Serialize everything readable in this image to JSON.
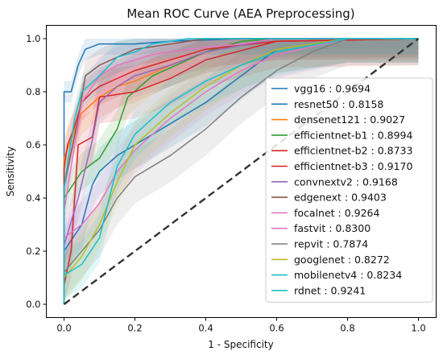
{
  "chart_data": {
    "type": "line",
    "title": "Mean ROC Curve (AEA Preprocessing)",
    "xlabel": "1 - Specificity",
    "ylabel": "Sensitivity",
    "xlim": [
      -0.05,
      1.05
    ],
    "ylim": [
      -0.05,
      1.05
    ],
    "xticks": [
      0.0,
      0.2,
      0.4,
      0.6,
      0.8,
      1.0
    ],
    "yticks": [
      0.0,
      0.2,
      0.4,
      0.6,
      0.8,
      1.0
    ],
    "xtick_labels": [
      "0.0",
      "0.2",
      "0.4",
      "0.6",
      "0.8",
      "1.0"
    ],
    "ytick_labels": [
      "0.0",
      "0.2",
      "0.4",
      "0.6",
      "0.8",
      "1.0"
    ],
    "grid": false,
    "legend_position": "center-right",
    "chance_line": {
      "x": [
        0,
        1
      ],
      "y": [
        0,
        1
      ],
      "color": "#333333",
      "style": "dashed"
    },
    "series": [
      {
        "name": "vgg16",
        "auc": "0.9694",
        "color": "#1f77b4",
        "x": [
          0,
          0,
          0.02,
          0.04,
          0.06,
          0.1,
          0.2,
          0.3,
          0.5,
          1.0
        ],
        "y": [
          0,
          0.8,
          0.8,
          0.9,
          0.96,
          0.98,
          0.98,
          0.99,
          1.0,
          1.0
        ],
        "band": 0.04
      },
      {
        "name": "resnet50",
        "auc": "0.8158",
        "color": "#1f77b4",
        "x": [
          0,
          0,
          0.05,
          0.08,
          0.1,
          0.15,
          0.2,
          0.3,
          0.4,
          0.5,
          0.6,
          0.8,
          1.0
        ],
        "y": [
          0,
          0.2,
          0.3,
          0.45,
          0.5,
          0.56,
          0.6,
          0.68,
          0.76,
          0.86,
          0.96,
          1.0,
          1.0
        ],
        "band": 0.09
      },
      {
        "name": "densenet121",
        "auc": "0.9027",
        "color": "#ff7f0e",
        "x": [
          0,
          0,
          0.02,
          0.05,
          0.1,
          0.15,
          0.2,
          0.3,
          0.4,
          0.5,
          0.6,
          1.0
        ],
        "y": [
          0,
          0.55,
          0.62,
          0.72,
          0.78,
          0.82,
          0.84,
          0.9,
          0.95,
          0.98,
          1.0,
          1.0
        ],
        "band": 0.08
      },
      {
        "name": "efficientnet-b1",
        "auc": "0.8994",
        "color": "#2ca02c",
        "x": [
          0,
          0,
          0.05,
          0.1,
          0.15,
          0.18,
          0.25,
          0.4,
          0.5,
          0.6,
          1.0
        ],
        "y": [
          0,
          0.4,
          0.5,
          0.55,
          0.66,
          0.78,
          0.86,
          0.95,
          0.99,
          1.0,
          1.0
        ],
        "band": 0.07
      },
      {
        "name": "efficientnet-b2",
        "auc": "0.8733",
        "color": "#d62728",
        "x": [
          0,
          0,
          0.02,
          0.04,
          0.08,
          0.1,
          0.2,
          0.3,
          0.4,
          0.6,
          1.0
        ],
        "y": [
          0,
          0.07,
          0.2,
          0.6,
          0.63,
          0.78,
          0.8,
          0.85,
          0.92,
          0.99,
          1.0
        ],
        "band": 0.1
      },
      {
        "name": "efficientnet-b3",
        "auc": "0.9170",
        "color": "#d62728",
        "x": [
          0,
          0,
          0.01,
          0.03,
          0.05,
          0.08,
          0.1,
          0.15,
          0.2,
          0.3,
          0.4,
          0.6,
          1.0
        ],
        "y": [
          0,
          0.51,
          0.6,
          0.67,
          0.76,
          0.8,
          0.82,
          0.85,
          0.88,
          0.92,
          0.96,
          0.99,
          1.0
        ],
        "band": 0.07
      },
      {
        "name": "convnextv2",
        "auc": "0.9168",
        "color": "#9467bd",
        "x": [
          0,
          0,
          0.04,
          0.08,
          0.1,
          0.15,
          0.2,
          0.3,
          0.4,
          0.6,
          1.0
        ],
        "y": [
          0,
          0.22,
          0.4,
          0.62,
          0.76,
          0.82,
          0.86,
          0.9,
          0.95,
          1.0,
          1.0
        ],
        "band": 0.08
      },
      {
        "name": "edgenext",
        "auc": "0.9403",
        "color": "#8c564b",
        "x": [
          0,
          0,
          0.04,
          0.06,
          0.1,
          0.15,
          0.2,
          0.3,
          0.4,
          1.0
        ],
        "y": [
          0,
          0.44,
          0.7,
          0.86,
          0.9,
          0.93,
          0.96,
          0.98,
          1.0,
          1.0
        ],
        "band": 0.06
      },
      {
        "name": "focalnet",
        "auc": "0.9264",
        "color": "#e377c2",
        "x": [
          0,
          0,
          0.03,
          0.05,
          0.1,
          0.15,
          0.25,
          0.35,
          0.5,
          0.6,
          1.0
        ],
        "y": [
          0,
          0.35,
          0.6,
          0.76,
          0.86,
          0.9,
          0.94,
          0.96,
          0.98,
          1.0,
          1.0
        ],
        "band": 0.07
      },
      {
        "name": "fastvit",
        "auc": "0.8300",
        "color": "#e377c2",
        "x": [
          0,
          0,
          0.05,
          0.1,
          0.15,
          0.2,
          0.3,
          0.4,
          0.5,
          0.6,
          0.8,
          1.0
        ],
        "y": [
          0,
          0.25,
          0.3,
          0.38,
          0.5,
          0.58,
          0.7,
          0.8,
          0.88,
          0.94,
          1.0,
          1.0
        ],
        "band": 0.09
      },
      {
        "name": "repvit",
        "auc": "0.7874",
        "color": "#7f7f7f",
        "x": [
          0,
          0,
          0.05,
          0.1,
          0.15,
          0.2,
          0.3,
          0.4,
          0.5,
          0.6,
          0.7,
          0.8,
          1.0
        ],
        "y": [
          0,
          0.12,
          0.2,
          0.28,
          0.4,
          0.48,
          0.56,
          0.66,
          0.78,
          0.88,
          0.95,
          1.0,
          1.0
        ],
        "band": 0.1
      },
      {
        "name": "googlenet",
        "auc": "0.8272",
        "color": "#bcbd22",
        "x": [
          0,
          0,
          0.05,
          0.1,
          0.15,
          0.2,
          0.3,
          0.4,
          0.5,
          0.6,
          0.8,
          1.0
        ],
        "y": [
          0,
          0.1,
          0.18,
          0.3,
          0.46,
          0.6,
          0.72,
          0.82,
          0.9,
          0.96,
          1.0,
          1.0
        ],
        "band": 0.09
      },
      {
        "name": "mobilenetv4",
        "auc": "0.8234",
        "color": "#17becf",
        "x": [
          0,
          0,
          0.05,
          0.1,
          0.15,
          0.2,
          0.25,
          0.3,
          0.4,
          0.5,
          0.6,
          0.8,
          1.0
        ],
        "y": [
          0,
          0.11,
          0.15,
          0.25,
          0.52,
          0.64,
          0.7,
          0.76,
          0.84,
          0.9,
          0.95,
          1.0,
          1.0
        ],
        "band": 0.09
      },
      {
        "name": "rdnet",
        "auc": "0.9241",
        "color": "#17becf",
        "x": [
          0,
          0,
          0.03,
          0.05,
          0.1,
          0.15,
          0.2,
          0.25,
          0.35,
          0.5,
          1.0
        ],
        "y": [
          0,
          0.44,
          0.7,
          0.8,
          0.86,
          0.93,
          0.95,
          0.98,
          1.0,
          1.0,
          1.0
        ],
        "band": 0.06
      }
    ]
  }
}
